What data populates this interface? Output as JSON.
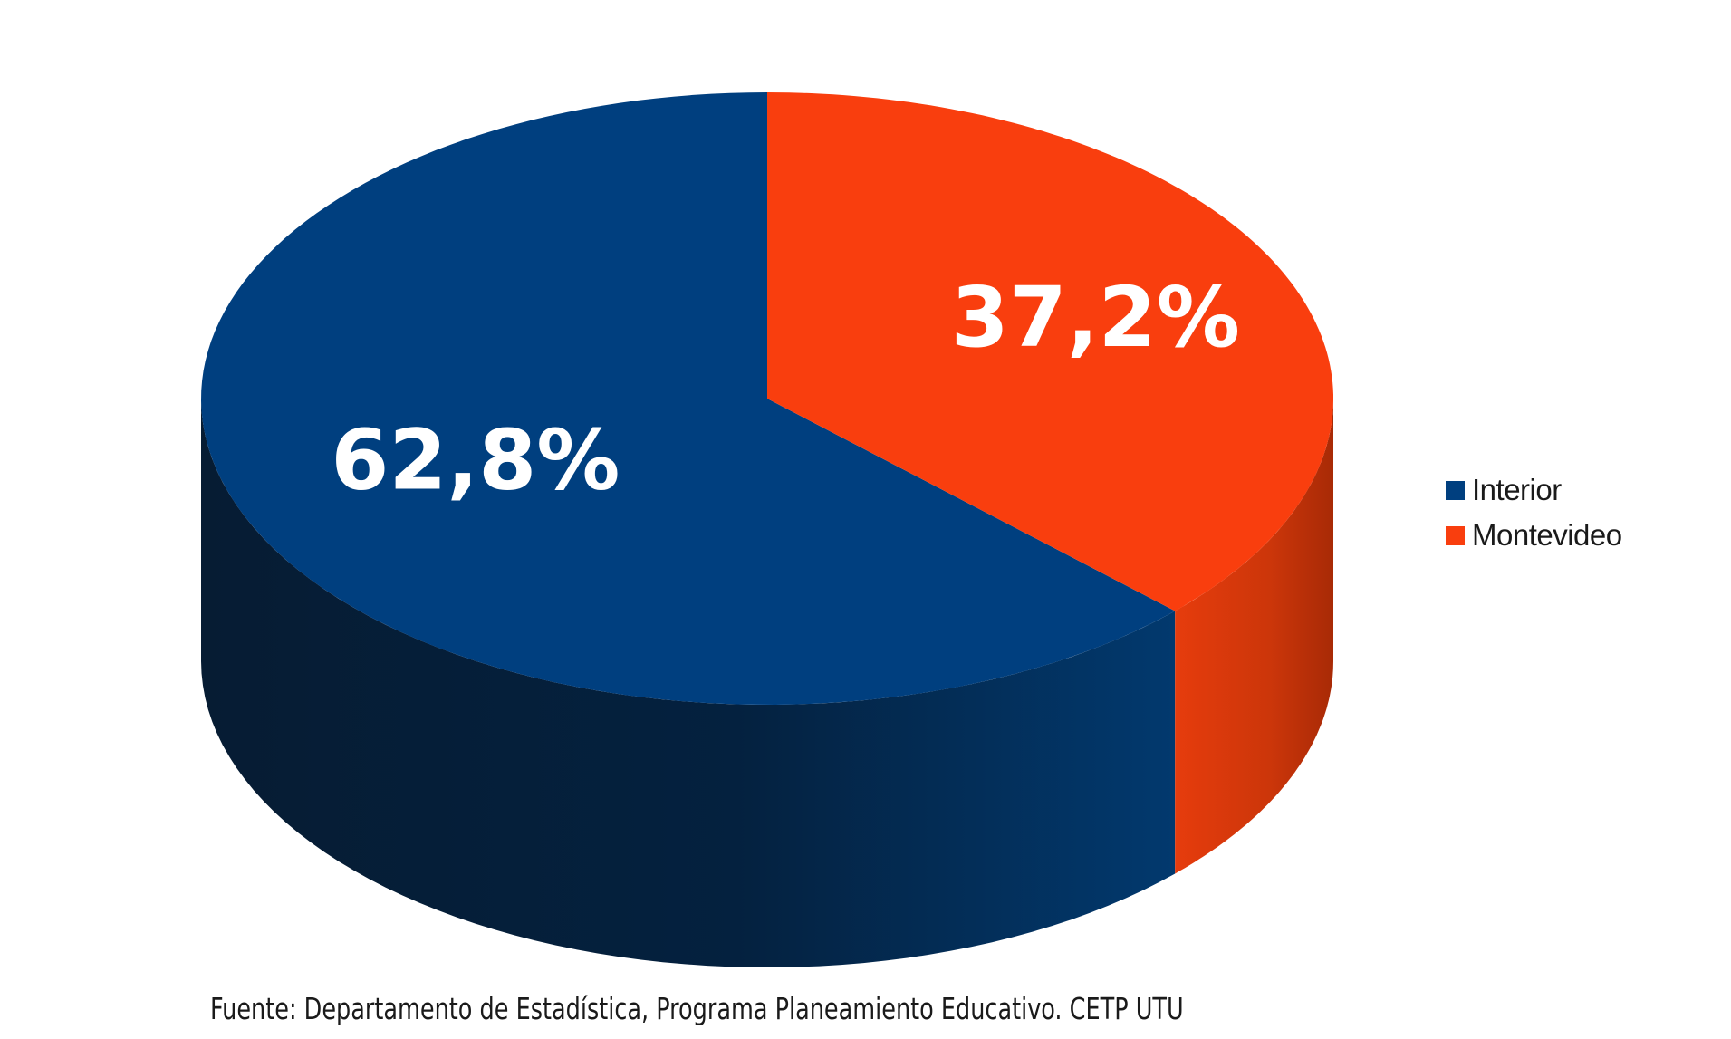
{
  "chart_data": {
    "type": "pie",
    "style": "3d",
    "categories": [
      "Interior",
      "Montevideo"
    ],
    "values": [
      62.8,
      37.2
    ],
    "data_labels": [
      "62,8%",
      "37,2%"
    ],
    "colors": [
      "#003F7F",
      "#F93E0E"
    ],
    "legend": {
      "placement": "right",
      "entries": [
        "Interior",
        "Montevideo"
      ]
    },
    "title": ""
  },
  "source": "Fuente: Departamento de Estadística, Programa Planeamiento Educativo. CETP UTU"
}
